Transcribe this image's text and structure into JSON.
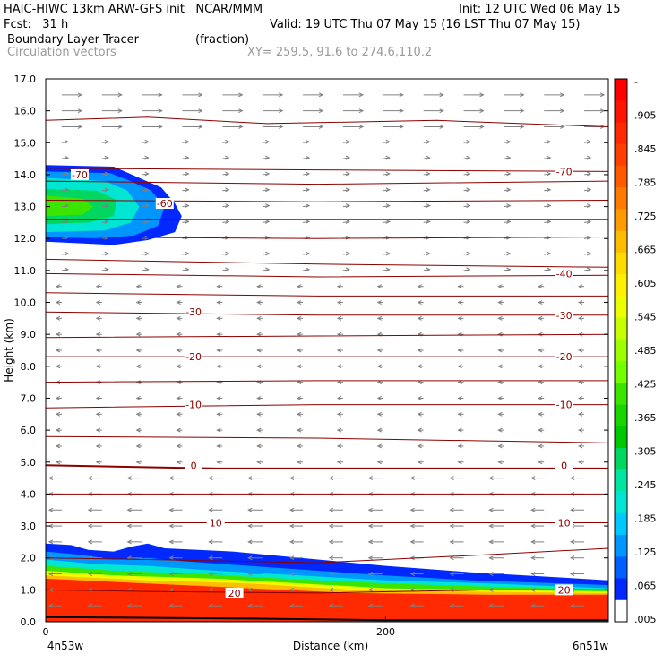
{
  "header": {
    "title_left": "HAIC-HIWC 13km ARW-GFS init   NCAR/MMM",
    "init": "Init: 12 UTC Wed 06 May 15",
    "fcst": "Fcst:   31 h",
    "valid": "Valid: 19 UTC Thu 07 May 15 (16 LST Thu 07 May 15)",
    "field1": "Boundary Layer Tracer",
    "field1_units": "(fraction)",
    "field2": "Circulation vectors",
    "xy": "XY= 259.5, 91.6 to 274.6,110.2"
  },
  "chart_data": {
    "type": "cross-section",
    "xlabel": "Distance (km)",
    "ylabel": "Height (km)",
    "x_endpoints": {
      "left": "4n53w",
      "right": "6n51w"
    },
    "xlim": [
      0,
      331
    ],
    "x_ticks": [
      0,
      200
    ],
    "ylim": [
      0,
      17
    ],
    "y_ticks": [
      "0.0",
      "1.0",
      "2.0",
      "3.0",
      "4.0",
      "5.0",
      "6.0",
      "7.0",
      "8.0",
      "9.0",
      "10.0",
      "11.0",
      "12.0",
      "13.0",
      "14.0",
      "15.0",
      "16.0",
      "17.0"
    ],
    "colorbar": {
      "labels": [
        "-",
        ".905",
        ".845",
        ".785",
        ".725",
        ".665",
        ".605",
        ".545",
        ".485",
        ".425",
        ".365",
        ".305",
        ".245",
        ".185",
        ".125",
        ".065",
        ".005"
      ],
      "colors": [
        "#ff0000",
        "#ff1400",
        "#ff2a00",
        "#ff4000",
        "#ff5a00",
        "#ff7a00",
        "#ff9a00",
        "#ffbd00",
        "#ffdc00",
        "#fff000",
        "#ecff00",
        "#c6ff00",
        "#9cff00",
        "#72ff00",
        "#3ce500",
        "#18d400",
        "#00c800",
        "#00d660",
        "#00e6a0",
        "#00e6d2",
        "#00c8ff",
        "#0096ff",
        "#0060ff",
        "#0028ff",
        "#ffffff"
      ]
    },
    "temperature_contour_labels": [
      {
        "value": "-70",
        "x": 20,
        "y": 14.0
      },
      {
        "value": "-70",
        "x": 305,
        "y": 14.1
      },
      {
        "value": "-60",
        "x": 70,
        "y": 13.1
      },
      {
        "value": "-40",
        "x": 305,
        "y": 10.9
      },
      {
        "value": "-30",
        "x": 87,
        "y": 9.7
      },
      {
        "value": "-30",
        "x": 305,
        "y": 9.6
      },
      {
        "value": "-20",
        "x": 87,
        "y": 8.3
      },
      {
        "value": "-20",
        "x": 305,
        "y": 8.3
      },
      {
        "value": "-10",
        "x": 87,
        "y": 6.8
      },
      {
        "value": "-10",
        "x": 305,
        "y": 6.8
      },
      {
        "value": "0",
        "x": 87,
        "y": 4.9
      },
      {
        "value": "0",
        "x": 305,
        "y": 4.9
      },
      {
        "value": "10",
        "x": 100,
        "y": 3.1
      },
      {
        "value": "10",
        "x": 305,
        "y": 3.1
      },
      {
        "value": "20",
        "x": 111,
        "y": 0.9
      },
      {
        "value": "20",
        "x": 305,
        "y": 1.0
      }
    ],
    "temperature_contours": [
      {
        "pts": [
          [
            0,
            15.7
          ],
          [
            60,
            15.8
          ],
          [
            130,
            15.6
          ],
          [
            230,
            15.7
          ],
          [
            331,
            15.5
          ]
        ],
        "bold": false
      },
      {
        "pts": [
          [
            0,
            14.2
          ],
          [
            160,
            14.15
          ],
          [
            331,
            14.1
          ]
        ],
        "bold": false
      },
      {
        "pts": [
          [
            0,
            13.8
          ],
          [
            160,
            13.7
          ],
          [
            331,
            13.8
          ]
        ],
        "bold": false
      },
      {
        "pts": [
          [
            0,
            13.2
          ],
          [
            160,
            13.15
          ],
          [
            331,
            13.2
          ]
        ],
        "bold": false
      },
      {
        "pts": [
          [
            0,
            12.6
          ],
          [
            160,
            12.6
          ],
          [
            331,
            12.6
          ]
        ],
        "bold": false
      },
      {
        "pts": [
          [
            0,
            12.05
          ],
          [
            160,
            12.0
          ],
          [
            331,
            12.05
          ]
        ],
        "bold": false
      },
      {
        "pts": [
          [
            0,
            11.35
          ],
          [
            160,
            11.2
          ],
          [
            331,
            11.1
          ]
        ],
        "bold": false
      },
      {
        "pts": [
          [
            0,
            10.9
          ],
          [
            160,
            10.8
          ],
          [
            331,
            10.85
          ]
        ],
        "bold": false
      },
      {
        "pts": [
          [
            0,
            10.3
          ],
          [
            160,
            10.2
          ],
          [
            331,
            10.2
          ]
        ],
        "bold": false
      },
      {
        "pts": [
          [
            0,
            9.7
          ],
          [
            160,
            9.6
          ],
          [
            331,
            9.6
          ]
        ],
        "bold": false
      },
      {
        "pts": [
          [
            0,
            8.9
          ],
          [
            160,
            8.95
          ],
          [
            331,
            9.0
          ]
        ],
        "bold": false
      },
      {
        "pts": [
          [
            0,
            8.3
          ],
          [
            160,
            8.3
          ],
          [
            331,
            8.3
          ]
        ],
        "bold": false
      },
      {
        "pts": [
          [
            0,
            7.5
          ],
          [
            160,
            7.55
          ],
          [
            331,
            7.55
          ]
        ],
        "bold": false
      },
      {
        "pts": [
          [
            0,
            6.7
          ],
          [
            160,
            6.8
          ],
          [
            331,
            6.8
          ]
        ],
        "bold": false
      },
      {
        "pts": [
          [
            0,
            5.8
          ],
          [
            160,
            5.75
          ],
          [
            331,
            5.6
          ]
        ],
        "bold": false
      },
      {
        "pts": [
          [
            0,
            4.9
          ],
          [
            100,
            4.8
          ],
          [
            331,
            4.8
          ]
        ],
        "bold": true
      },
      {
        "pts": [
          [
            0,
            4.0
          ],
          [
            160,
            4.0
          ],
          [
            331,
            4.0
          ]
        ],
        "bold": false
      },
      {
        "pts": [
          [
            0,
            3.1
          ],
          [
            160,
            3.1
          ],
          [
            331,
            3.1
          ]
        ],
        "bold": false
      },
      {
        "pts": [
          [
            0,
            2.0
          ],
          [
            60,
            1.95
          ],
          [
            160,
            1.85
          ],
          [
            260,
            2.1
          ],
          [
            331,
            2.3
          ]
        ],
        "bold": false
      },
      {
        "pts": [
          [
            0,
            1.0
          ],
          [
            60,
            0.95
          ],
          [
            160,
            0.9
          ],
          [
            260,
            1.0
          ],
          [
            331,
            1.0
          ]
        ],
        "bold": false
      }
    ],
    "tracer_upper_layers": [
      {
        "color": "#0028ff",
        "pts": [
          [
            0,
            14.3
          ],
          [
            40,
            14.25
          ],
          [
            55,
            13.9
          ],
          [
            68,
            13.6
          ],
          [
            76,
            13.1
          ],
          [
            80,
            12.7
          ],
          [
            76,
            12.2
          ],
          [
            60,
            11.95
          ],
          [
            40,
            11.8
          ],
          [
            0,
            11.9
          ]
        ]
      },
      {
        "color": "#0096ff",
        "pts": [
          [
            0,
            14.1
          ],
          [
            38,
            14.05
          ],
          [
            50,
            13.8
          ],
          [
            62,
            13.5
          ],
          [
            70,
            13.0
          ],
          [
            66,
            12.4
          ],
          [
            52,
            12.1
          ],
          [
            30,
            12.0
          ],
          [
            0,
            12.05
          ]
        ]
      },
      {
        "color": "#00e6d2",
        "pts": [
          [
            0,
            13.9
          ],
          [
            35,
            13.8
          ],
          [
            48,
            13.5
          ],
          [
            55,
            13.0
          ],
          [
            50,
            12.5
          ],
          [
            35,
            12.25
          ],
          [
            0,
            12.2
          ]
        ]
      },
      {
        "color": "#00d660",
        "pts": [
          [
            0,
            13.55
          ],
          [
            30,
            13.5
          ],
          [
            42,
            13.2
          ],
          [
            40,
            12.7
          ],
          [
            25,
            12.5
          ],
          [
            0,
            12.45
          ]
        ]
      },
      {
        "color": "#3ce500",
        "pts": [
          [
            0,
            13.35
          ],
          [
            22,
            13.25
          ],
          [
            28,
            13.0
          ],
          [
            22,
            12.75
          ],
          [
            0,
            12.7
          ]
        ]
      }
    ],
    "tracer_lower_layers": [
      {
        "color": "#0028ff",
        "top": [
          [
            0,
            2.45
          ],
          [
            15,
            2.4
          ],
          [
            25,
            2.25
          ],
          [
            40,
            2.2
          ],
          [
            50,
            2.35
          ],
          [
            60,
            2.45
          ],
          [
            70,
            2.3
          ],
          [
            110,
            2.2
          ],
          [
            150,
            2.0
          ],
          [
            200,
            1.75
          ],
          [
            250,
            1.55
          ],
          [
            331,
            1.3
          ]
        ]
      },
      {
        "color": "#0096ff",
        "top": [
          [
            0,
            2.2
          ],
          [
            20,
            2.1
          ],
          [
            40,
            1.95
          ],
          [
            60,
            2.0
          ],
          [
            80,
            1.9
          ],
          [
            120,
            1.75
          ],
          [
            160,
            1.6
          ],
          [
            200,
            1.45
          ],
          [
            250,
            1.3
          ],
          [
            331,
            1.15
          ]
        ]
      },
      {
        "color": "#00e6d2",
        "top": [
          [
            0,
            1.95
          ],
          [
            30,
            1.8
          ],
          [
            60,
            1.75
          ],
          [
            100,
            1.6
          ],
          [
            150,
            1.45
          ],
          [
            200,
            1.3
          ],
          [
            260,
            1.2
          ],
          [
            331,
            1.05
          ]
        ]
      },
      {
        "color": "#3ce500",
        "top": [
          [
            0,
            1.75
          ],
          [
            40,
            1.6
          ],
          [
            90,
            1.5
          ],
          [
            140,
            1.35
          ],
          [
            200,
            1.2
          ],
          [
            260,
            1.1
          ],
          [
            331,
            1.0
          ]
        ]
      },
      {
        "color": "#ecff00",
        "top": [
          [
            0,
            1.6
          ],
          [
            40,
            1.45
          ],
          [
            100,
            1.35
          ],
          [
            150,
            1.2
          ],
          [
            200,
            1.05
          ],
          [
            260,
            1.0
          ],
          [
            331,
            0.95
          ]
        ]
      },
      {
        "color": "#ffbd00",
        "top": [
          [
            0,
            1.45
          ],
          [
            60,
            1.3
          ],
          [
            120,
            1.2
          ],
          [
            180,
            1.0
          ],
          [
            240,
            0.95
          ],
          [
            331,
            0.9
          ]
        ]
      },
      {
        "color": "#ff2a00",
        "top": [
          [
            0,
            1.35
          ],
          [
            60,
            1.2
          ],
          [
            120,
            1.05
          ],
          [
            180,
            0.9
          ],
          [
            260,
            0.85
          ],
          [
            331,
            0.85
          ]
        ]
      }
    ]
  }
}
